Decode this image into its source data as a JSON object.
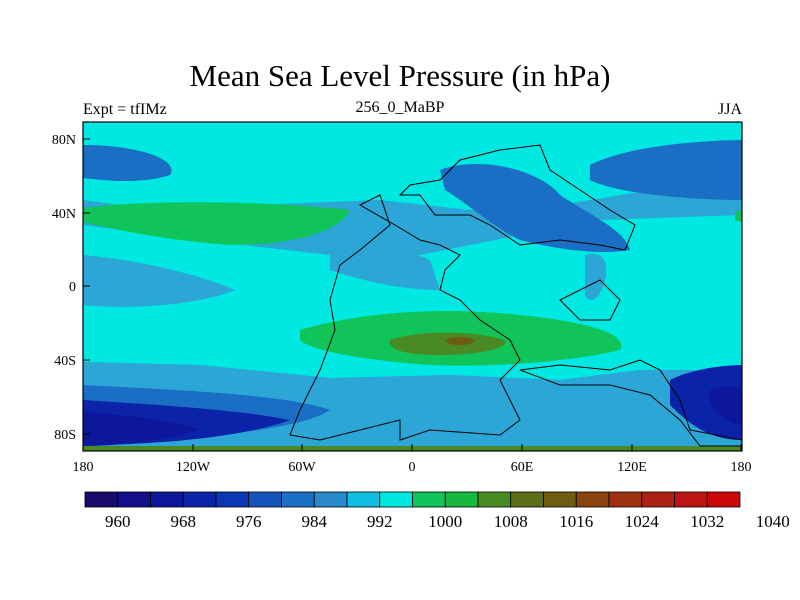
{
  "title": "Mean Sea Level Pressure (in hPa)",
  "subtitle_left": "Expt = tfIMz",
  "subtitle_center": "256_0_MaBP",
  "subtitle_right": "JJA",
  "lat_ticks": [
    "80N",
    "40N",
    "0",
    "40S",
    "80S"
  ],
  "lon_ticks": [
    "180",
    "120W",
    "60W",
    "0",
    "60E",
    "120E",
    "180"
  ],
  "colorbar_labels": [
    "960",
    "968",
    "976",
    "984",
    "992",
    "1000",
    "1008",
    "1016",
    "1024",
    "1032",
    "1040"
  ],
  "colorbar_colors": [
    "#1a0a6b",
    "#130e8a",
    "#0d179c",
    "#0a23a8",
    "#0b37b2",
    "#1355bb",
    "#1a6ec4",
    "#2989cc",
    "#11bde0",
    "#00e8e2",
    "#10c45a",
    "#16b840",
    "#4a8a24",
    "#5c6e16",
    "#6e5c10",
    "#8a4410",
    "#9c3212",
    "#ac2212",
    "#bc1412",
    "#cc0808"
  ],
  "field_colors": {
    "deep_low": "#0d179c",
    "low": "#0a23a8",
    "mid_low": "#1a6ec4",
    "light_blue": "#2ba6d6",
    "cyan": "#00e8e2",
    "green": "#10c45a",
    "dark_green": "#4a8a24",
    "olive": "#6e5c10"
  }
}
